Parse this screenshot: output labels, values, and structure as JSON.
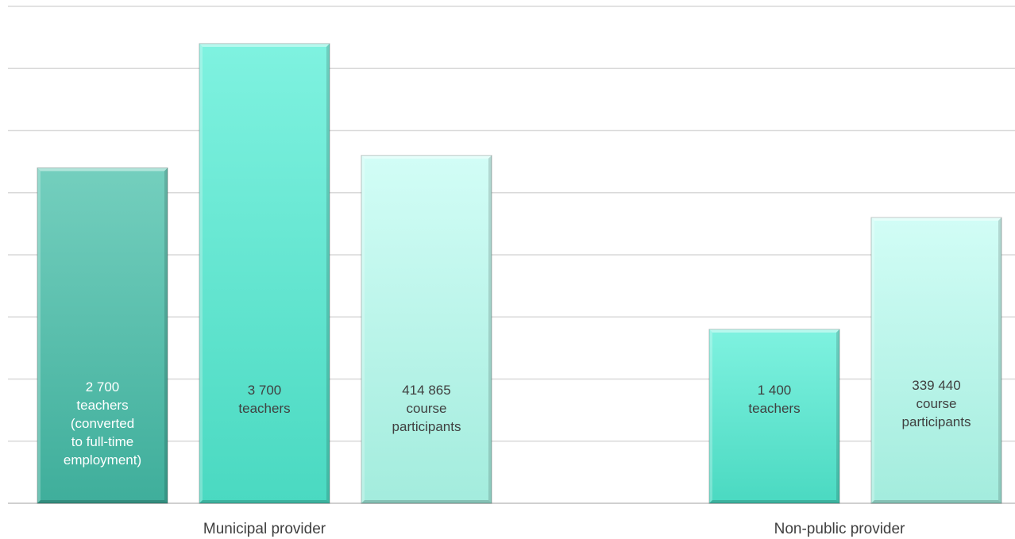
{
  "chart_data": {
    "type": "bar",
    "title": "",
    "xlabel": "",
    "ylabel": "",
    "ylim": [
      0,
      4000
    ],
    "grid": true,
    "legend": "none",
    "categories": [
      "Municipal provider",
      "Non-public provider"
    ],
    "bars": [
      {
        "category": "Municipal provider",
        "value": 2700,
        "label_lines": [
          "2 700",
          "teachers",
          "(converted",
          "to full-time",
          "employment)"
        ],
        "top_color": "#74cfbe",
        "bottom_color": "#3fae9b",
        "text_color": "#ffffff"
      },
      {
        "category": "Municipal provider",
        "value": 3700,
        "label_lines": [
          "3 700",
          "teachers"
        ],
        "top_color": "#7ff2e0",
        "bottom_color": "#4ad9c1",
        "text_color": "#404040"
      },
      {
        "category": "Municipal provider",
        "value": 2800,
        "label_lines": [
          "414 865",
          "course",
          "participants"
        ],
        "top_color": "#d2fdf6",
        "bottom_color": "#a3ecdd",
        "text_color": "#404040"
      },
      {
        "category": "Non-public provider",
        "value": 1400,
        "label_lines": [
          "1 400",
          "teachers"
        ],
        "top_color": "#7ff2e0",
        "bottom_color": "#4ad9c1",
        "text_color": "#404040"
      },
      {
        "category": "Non-public provider",
        "value": 2300,
        "label_lines": [
          "339 440",
          "course",
          "participants"
        ],
        "top_color": "#d2fdf6",
        "bottom_color": "#a3ecdd",
        "text_color": "#404040"
      }
    ]
  }
}
